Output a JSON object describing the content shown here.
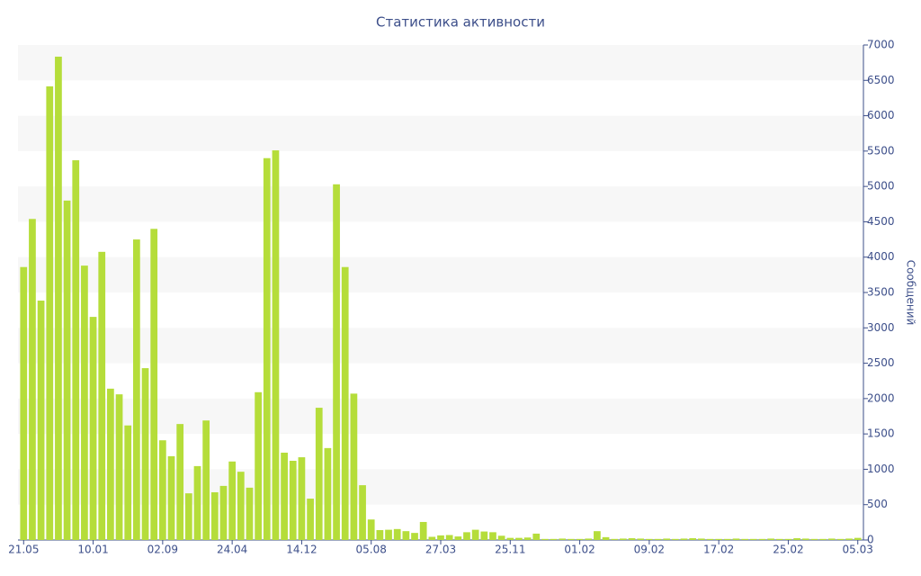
{
  "chart_data": {
    "type": "bar",
    "title": "Статистика активности",
    "y_label": "Сообщений",
    "categories": [
      "21.05",
      null,
      null,
      null,
      null,
      null,
      null,
      null,
      "10.01",
      null,
      null,
      null,
      null,
      null,
      null,
      null,
      "02.09",
      null,
      null,
      null,
      null,
      null,
      null,
      null,
      "24.04",
      null,
      null,
      null,
      null,
      null,
      null,
      null,
      "14.12",
      null,
      null,
      null,
      null,
      null,
      null,
      null,
      "05.08",
      null,
      null,
      null,
      null,
      null,
      null,
      null,
      "27.03",
      null,
      null,
      null,
      null,
      null,
      null,
      null,
      "25.11",
      null,
      null,
      null,
      null,
      null,
      null,
      null,
      "01.02",
      null,
      null,
      null,
      null,
      null,
      null,
      null,
      "09.02",
      null,
      null,
      null,
      null,
      null,
      null,
      null,
      "17.02",
      null,
      null,
      null,
      null,
      null,
      null,
      null,
      "25.02",
      null,
      null,
      null,
      null,
      null,
      null,
      null,
      "05.03"
    ],
    "values": [
      3860,
      4540,
      3385,
      6415,
      6835,
      4800,
      5370,
      3880,
      3155,
      4075,
      2140,
      2060,
      1620,
      4250,
      2430,
      4400,
      1410,
      1185,
      1640,
      660,
      1045,
      1690,
      675,
      765,
      1110,
      965,
      740,
      2090,
      5400,
      5510,
      1235,
      1120,
      1170,
      585,
      1870,
      1300,
      5030,
      3860,
      2070,
      775,
      290,
      140,
      145,
      155,
      125,
      100,
      255,
      45,
      65,
      70,
      50,
      110,
      145,
      120,
      110,
      60,
      30,
      30,
      35,
      90,
      15,
      15,
      20,
      15,
      15,
      20,
      125,
      40,
      15,
      20,
      25,
      20,
      15,
      15,
      20,
      15,
      20,
      25,
      20,
      15,
      15,
      15,
      20,
      15,
      15,
      15,
      20,
      15,
      15,
      25,
      20,
      15,
      15,
      20,
      15,
      20,
      30
    ],
    "color": "#b5dd3a",
    "ylim": [
      0,
      7000
    ],
    "yticks": [
      0,
      500,
      1000,
      1500,
      2000,
      2500,
      3000,
      3500,
      4000,
      4500,
      5000,
      5500,
      6000,
      6500,
      7000
    ]
  }
}
